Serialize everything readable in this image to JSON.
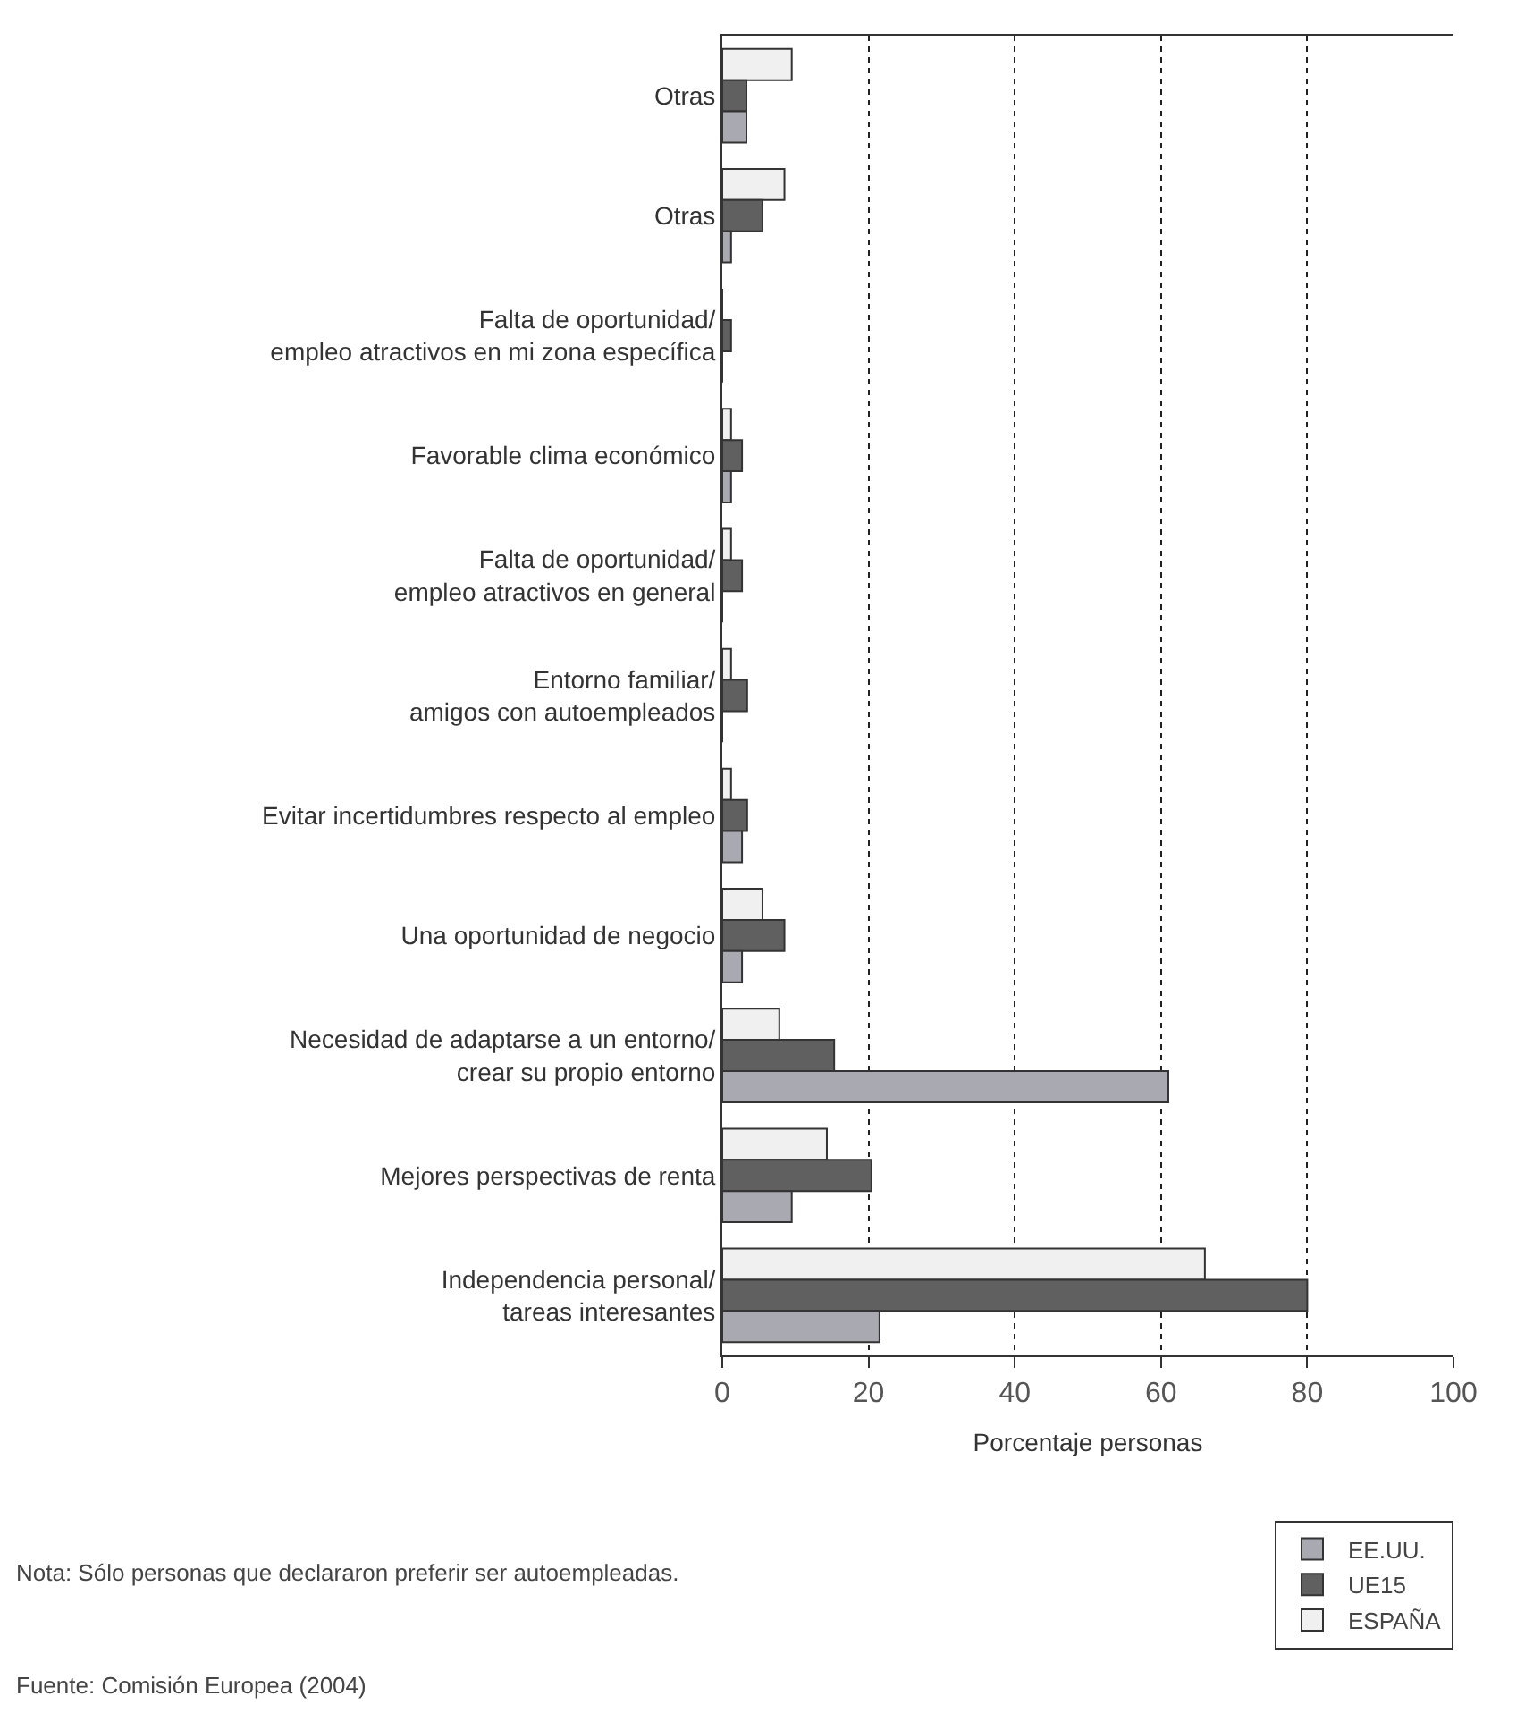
{
  "chart_data": {
    "type": "bar",
    "orientation": "horizontal",
    "xlabel": "Porcentaje personas",
    "categories": [
      "Otras",
      "Otras",
      "Falta de oportunidad/\nempleo atractivos en mi zona específica",
      "Favorable clima económico",
      "Falta de oportunidad/\nempleo atractivos en general",
      "Entorno familiar/\namigos con autoempleados",
      "Evitar incertidumbres respecto al empleo",
      "Una oportunidad de negocio",
      "Necesidad de adaptarse a un entorno/\ncrear su propio entorno",
      "Mejores perspectivas de renta",
      "Independencia personal/\ntareas interesantes"
    ],
    "series": [
      {
        "name": "EE.UU.",
        "color": "#a9a9b1",
        "values": [
          3.3,
          1.2,
          0,
          1.2,
          0,
          0,
          2.7,
          2.7,
          61,
          9.5,
          21.5
        ]
      },
      {
        "name": "UE15",
        "color": "#606060",
        "values": [
          3.3,
          5.5,
          1.2,
          2.7,
          2.7,
          3.4,
          3.4,
          8.5,
          15.3,
          20.4,
          80
        ]
      },
      {
        "name": "ESPAÑA",
        "color": "#f0f0f0",
        "values": [
          9.5,
          8.5,
          0,
          1.2,
          1.2,
          1.2,
          1.2,
          5.5,
          7.8,
          14.3,
          66
        ]
      }
    ],
    "xlim": [
      0,
      100
    ],
    "xticks": [
      0,
      20,
      40,
      60,
      80,
      100
    ],
    "grid": "x",
    "legend": "bottom right",
    "annotations": [
      "Nota: Sólo personas que declararon preferir ser autoempleadas.",
      "Fuente: Comisión Europea (2004)"
    ]
  }
}
